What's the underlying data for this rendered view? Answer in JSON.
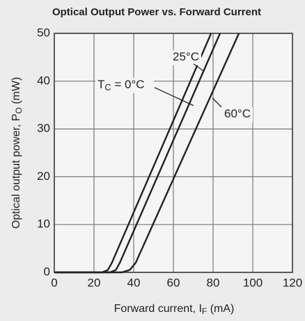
{
  "chart_data": {
    "type": "line",
    "title": "Optical Output Power vs. Forward Current",
    "xlabel": [
      "Forward current,  I",
      "F",
      "  (mA)"
    ],
    "ylabel": [
      "Optical output power,  P",
      "O",
      "  (mW)"
    ],
    "xlim": [
      0,
      120
    ],
    "xticks": [
      0,
      20,
      40,
      60,
      80,
      100,
      120
    ],
    "ylim": [
      0,
      50
    ],
    "yticks": [
      0,
      10,
      20,
      30,
      40,
      50
    ],
    "grid": true,
    "series": [
      {
        "color": "#222222",
        "x": [
          0,
          24,
          27,
          29,
          79
        ],
        "values": [
          0,
          0,
          0.5,
          2,
          50
        ]
      },
      {
        "color": "#222222",
        "x": [
          0,
          28,
          31,
          33,
          83.5
        ],
        "values": [
          0,
          0,
          0.5,
          2,
          50
        ]
      },
      {
        "color": "#222222",
        "x": [
          0,
          34,
          38,
          41,
          93
        ],
        "values": [
          0,
          0,
          0.5,
          2,
          50
        ]
      }
    ],
    "annotations": [
      [
        "T",
        "C",
        " = 0°C"
      ],
      [
        "25°C"
      ],
      [
        "60°C"
      ]
    ]
  }
}
